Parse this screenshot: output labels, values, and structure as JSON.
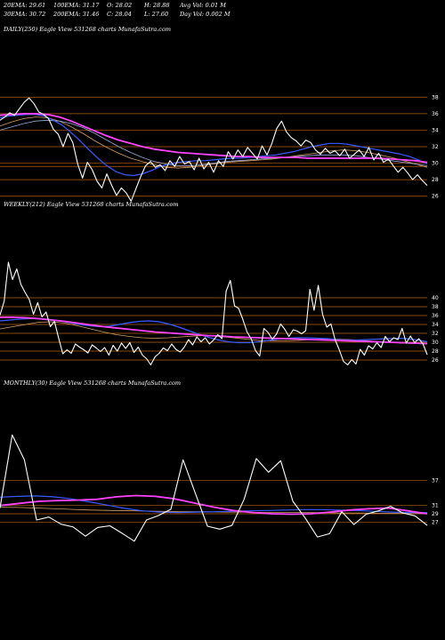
{
  "header": {
    "row1": [
      "20EMA: 29.61",
      "100EMA: 31.17",
      "O: 28.02",
      "H: 28.88",
      "Avg Vol: 0.01 M"
    ],
    "row2": [
      "30EMA: 30.72",
      "200EMA: 31.46",
      "C: 28.04",
      "L: 27.60",
      "Day Vol: 0.002 M"
    ]
  },
  "chart_data": [
    {
      "type": "line",
      "title": "DAILY(250) Eagle  View  531268  charts MunafaSutra.com",
      "ylim": [
        25,
        39
      ],
      "yticks": [
        "38",
        "36",
        "34",
        "32",
        "30",
        "28",
        "26"
      ],
      "colors": {
        "price": "#ffffff",
        "ema_short": "#3a5bff",
        "ema_long": "#ff44ff",
        "ema_mid": "#d9a066",
        "ema_slow": "#9ad",
        "level": "#b8600c"
      },
      "series": [
        {
          "values": [
            35.2,
            35.6,
            36.1,
            35.8,
            36.6,
            37.4,
            37.9,
            37.2,
            36.2,
            35.9,
            35.4,
            34.1,
            33.5,
            32.0,
            33.6,
            32.5,
            29.9,
            28.2,
            30.1,
            29.2,
            27.8,
            27.0,
            28.7,
            27.3,
            26.1,
            27.0,
            26.4,
            25.4,
            26.9,
            28.4,
            29.7,
            30.2,
            29.5,
            29.8,
            29.1,
            30.3,
            29.6,
            30.8,
            29.9,
            30.2,
            29.2,
            30.6,
            29.3,
            30.1,
            28.9,
            30.3,
            29.6,
            31.4,
            30.5,
            31.6,
            30.8,
            31.9,
            31.2,
            30.5,
            32.1,
            31.0,
            32.4,
            34.2,
            35.1,
            33.8,
            33.1,
            32.7,
            32.1,
            32.8,
            32.5,
            31.6,
            31.1,
            31.8,
            31.2,
            31.5,
            30.9,
            31.7,
            30.6,
            31.1,
            31.6,
            30.8,
            31.9,
            30.4,
            31.2,
            30.1,
            30.5,
            29.7,
            28.9,
            29.5,
            28.8,
            28.0,
            28.6,
            27.9,
            27.3
          ]
        },
        {
          "values": [
            35.5,
            35.7,
            35.8,
            35.9,
            35.9,
            35.7,
            35.2,
            34.6,
            33.7,
            32.7,
            31.6,
            30.6,
            29.7,
            29.0,
            28.6,
            28.5,
            28.7,
            29.1,
            29.6,
            29.9,
            30.1,
            30.2,
            30.3,
            30.3,
            30.4,
            30.5,
            30.6,
            30.6,
            30.7,
            30.8,
            30.9,
            31.0,
            31.2,
            31.4,
            31.7,
            32.0,
            32.2,
            32.4,
            32.4,
            32.3,
            32.1,
            31.9,
            31.7,
            31.5,
            31.3,
            31.1,
            30.8,
            30.4,
            29.9
          ]
        },
        {
          "values": [
            35.8,
            35.9,
            36.0,
            36.0,
            35.9,
            35.6,
            35.1,
            34.5,
            33.9,
            33.3,
            32.8,
            32.4,
            32.0,
            31.7,
            31.5,
            31.3,
            31.2,
            31.1,
            31.0,
            30.9,
            30.8,
            30.8,
            30.7,
            30.7,
            30.7,
            30.7,
            30.6,
            30.6,
            30.6,
            30.6,
            30.6,
            30.6,
            30.6,
            30.5,
            30.4,
            30.3,
            30.1
          ]
        },
        {
          "values": [
            34.5,
            35.0,
            35.4,
            35.6,
            35.5,
            35.1,
            34.4,
            33.6,
            32.7,
            31.9,
            31.2,
            30.6,
            30.2,
            29.8,
            29.5,
            29.4,
            29.5,
            29.7,
            29.9,
            30.1,
            30.2,
            30.3,
            30.4,
            30.5,
            30.7,
            30.9,
            31.1,
            31.3,
            31.5,
            31.6,
            31.5,
            31.3,
            31.0,
            30.7,
            30.3,
            29.9,
            29.5
          ]
        },
        {
          "values": [
            34.0,
            34.4,
            34.8,
            35.1,
            35.2,
            35.1,
            34.8,
            34.3,
            33.6,
            32.8,
            32.0,
            31.3,
            30.7,
            30.2,
            29.9,
            29.7,
            29.7,
            29.8,
            30.0,
            30.2,
            30.3,
            30.4,
            30.5,
            30.6,
            30.7,
            30.8,
            30.9,
            31.0,
            31.0,
            31.0,
            30.9,
            30.7,
            30.5,
            30.3,
            30.1,
            29.9,
            29.7
          ]
        }
      ],
      "levels": [
        38,
        36,
        34,
        32,
        30,
        29.6,
        28,
        26
      ]
    },
    {
      "type": "line",
      "title": "WEEKLY(212) Eagle  View  531268  charts MunafaSutra.com",
      "ylim": [
        23,
        49
      ],
      "yticks": [
        "40",
        "38",
        "36",
        "34",
        "32",
        "30",
        "28",
        "26"
      ],
      "series": [
        {
          "values": [
            36.1,
            39.2,
            48.0,
            44.1,
            46.5,
            43.0,
            41.2,
            39.6,
            36.3,
            38.9,
            35.7,
            36.8,
            33.5,
            34.7,
            30.9,
            27.4,
            28.3,
            27.5,
            29.6,
            28.9,
            28.3,
            27.6,
            29.4,
            28.7,
            27.9,
            28.8,
            27.1,
            29.3,
            28.0,
            29.8,
            28.6,
            29.9,
            27.7,
            28.9,
            27.1,
            26.3,
            24.9,
            26.7,
            27.5,
            28.7,
            28.1,
            29.6,
            28.4,
            27.8,
            28.9,
            30.6,
            29.4,
            31.2,
            30.1,
            31.0,
            29.6,
            30.5,
            31.7,
            30.8,
            41.5,
            43.9,
            38.2,
            37.6,
            35.1,
            32.3,
            30.7,
            28.1,
            26.9,
            33.1,
            32.2,
            30.7,
            31.8,
            34.1,
            32.9,
            31.3,
            32.8,
            32.5,
            31.9,
            32.6,
            41.9,
            37.2,
            42.8,
            36.3,
            33.4,
            34.1,
            30.6,
            28.3,
            25.7,
            24.9,
            26.1,
            25.1,
            28.4,
            27.1,
            29.2,
            28.5,
            29.9,
            28.8,
            31.3,
            30.1,
            31.0,
            30.6,
            33.1,
            29.8,
            31.4,
            29.9,
            30.8,
            29.6,
            27.2
          ]
        },
        {
          "values": [
            34.8,
            35.0,
            35.2,
            35.3,
            35.3,
            35.1,
            34.8,
            34.4,
            34.0,
            33.7,
            33.5,
            33.6,
            34.0,
            34.4,
            34.7,
            34.8,
            34.6,
            34.1,
            33.4,
            32.6,
            31.8,
            31.1,
            30.5,
            30.1,
            29.9,
            29.9,
            30.1,
            30.4,
            30.7,
            30.9,
            31.0,
            31.0,
            30.9,
            30.8,
            30.6,
            30.5,
            30.5,
            30.6,
            30.7,
            30.8,
            30.9,
            30.8,
            30.5,
            30.1
          ]
        },
        {
          "values": [
            35.6,
            35.6,
            35.5,
            35.3,
            35.0,
            34.7,
            34.3,
            33.9,
            33.5,
            33.2,
            32.9,
            32.6,
            32.3,
            32.1,
            31.9,
            31.7,
            31.5,
            31.4,
            31.2,
            31.1,
            31.0,
            30.9,
            30.8,
            30.7,
            30.6,
            30.5,
            30.4,
            30.3,
            30.2,
            30.1,
            30.0,
            29.9,
            29.8,
            29.7
          ]
        },
        {
          "values": [
            33.0,
            33.5,
            34.0,
            34.5,
            34.6,
            34.3,
            33.7,
            33.0,
            32.3,
            31.7,
            31.3,
            31.0,
            30.9,
            31.0,
            31.2,
            31.4,
            31.5,
            31.3,
            31.0,
            30.7,
            30.4,
            30.3,
            30.3,
            30.4,
            30.6,
            30.7,
            30.7,
            30.6,
            30.4,
            30.2,
            30.0,
            29.8,
            29.7,
            29.6
          ]
        }
      ],
      "levels": [
        40,
        38,
        36,
        34,
        32,
        30,
        28,
        26
      ]
    },
    {
      "type": "line",
      "title": "MONTHLY(30) Eagle  View  531268  charts MunafaSutra.com",
      "ylim": [
        20,
        50
      ],
      "yticks": [
        "37",
        "31",
        "29",
        "27"
      ],
      "series": [
        {
          "values": [
            30.4,
            48.0,
            42.0,
            27.5,
            28.2,
            26.5,
            25.8,
            23.6,
            25.7,
            26.1,
            24.3,
            22.4,
            27.5,
            28.6,
            30.1,
            42.0,
            34.0,
            26.0,
            25.3,
            26.2,
            32.5,
            42.3,
            39.0,
            41.8,
            32.0,
            28.0,
            23.4,
            24.2,
            29.5,
            26.4,
            28.9,
            29.7,
            30.8,
            29.2,
            28.5,
            26.2
          ]
        },
        {
          "values": [
            33.0,
            33.2,
            33.3,
            33.1,
            32.6,
            31.9,
            31.1,
            30.3,
            29.7,
            29.4,
            29.3,
            29.4,
            29.5,
            29.6,
            29.7,
            29.8,
            29.9,
            30.0,
            30.0,
            29.9,
            29.8,
            29.6,
            29.4,
            29.3,
            29.3
          ]
        },
        {
          "values": [
            31.0,
            31.5,
            32.0,
            32.2,
            32.3,
            32.5,
            33.1,
            33.4,
            33.2,
            32.6,
            31.6,
            30.6,
            29.8,
            29.3,
            29.0,
            28.9,
            29.0,
            29.4,
            29.9,
            30.2,
            30.4,
            29.7,
            29.0
          ]
        },
        {
          "values": [
            30.6,
            30.5,
            30.3,
            30.1,
            29.9,
            29.8,
            29.7,
            29.6,
            29.5,
            29.5,
            29.4,
            29.4,
            29.3,
            29.3,
            29.3,
            29.2,
            29.2,
            29.1,
            29.1,
            29.0
          ]
        }
      ],
      "levels": [
        37,
        31,
        29,
        27
      ]
    }
  ]
}
